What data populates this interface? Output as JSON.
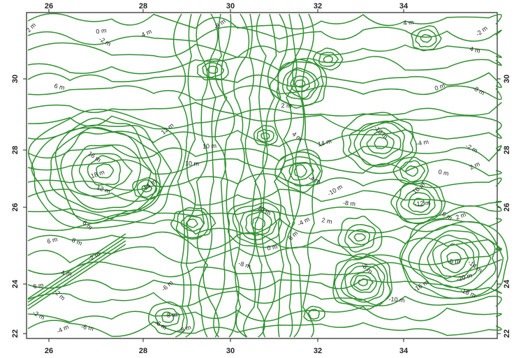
{
  "map": {
    "xticks": [
      26,
      28,
      30,
      32,
      34
    ],
    "yticks": [
      30,
      28,
      26,
      24,
      22
    ],
    "contour_labels": [
      "2 m",
      "0 m",
      "-2 m",
      "4 m",
      "6 m",
      "12 m",
      "10 m",
      "16 m",
      "18 m",
      "12 m",
      "14 m",
      "10 m",
      "6 m",
      "6 m",
      "8 m",
      "-2 m",
      "4 m",
      "-2 m",
      "6 m",
      "-2 m",
      "-4 m",
      "-6 m",
      "-6 m",
      "-8 m",
      "-6 m",
      "-8 m",
      "-8 m",
      "-8 m",
      "2 m",
      "4 m",
      "14 m",
      "-4 m",
      "-10 m",
      "-8 m",
      "-10 m",
      "-4 m",
      "-2 m",
      "2 m",
      "0 m",
      "10 m",
      "-12 m",
      "6 m",
      "2 m",
      "4 m",
      "-2 m",
      "-6 m",
      "-14 m",
      "-20 m",
      "-18 m",
      "-16 m",
      "-10 m",
      "-8 m",
      "0 m",
      "10 m",
      "-4 m",
      "2 m",
      "6 m",
      "4 m",
      "-8 m",
      "0 m"
    ]
  }
}
